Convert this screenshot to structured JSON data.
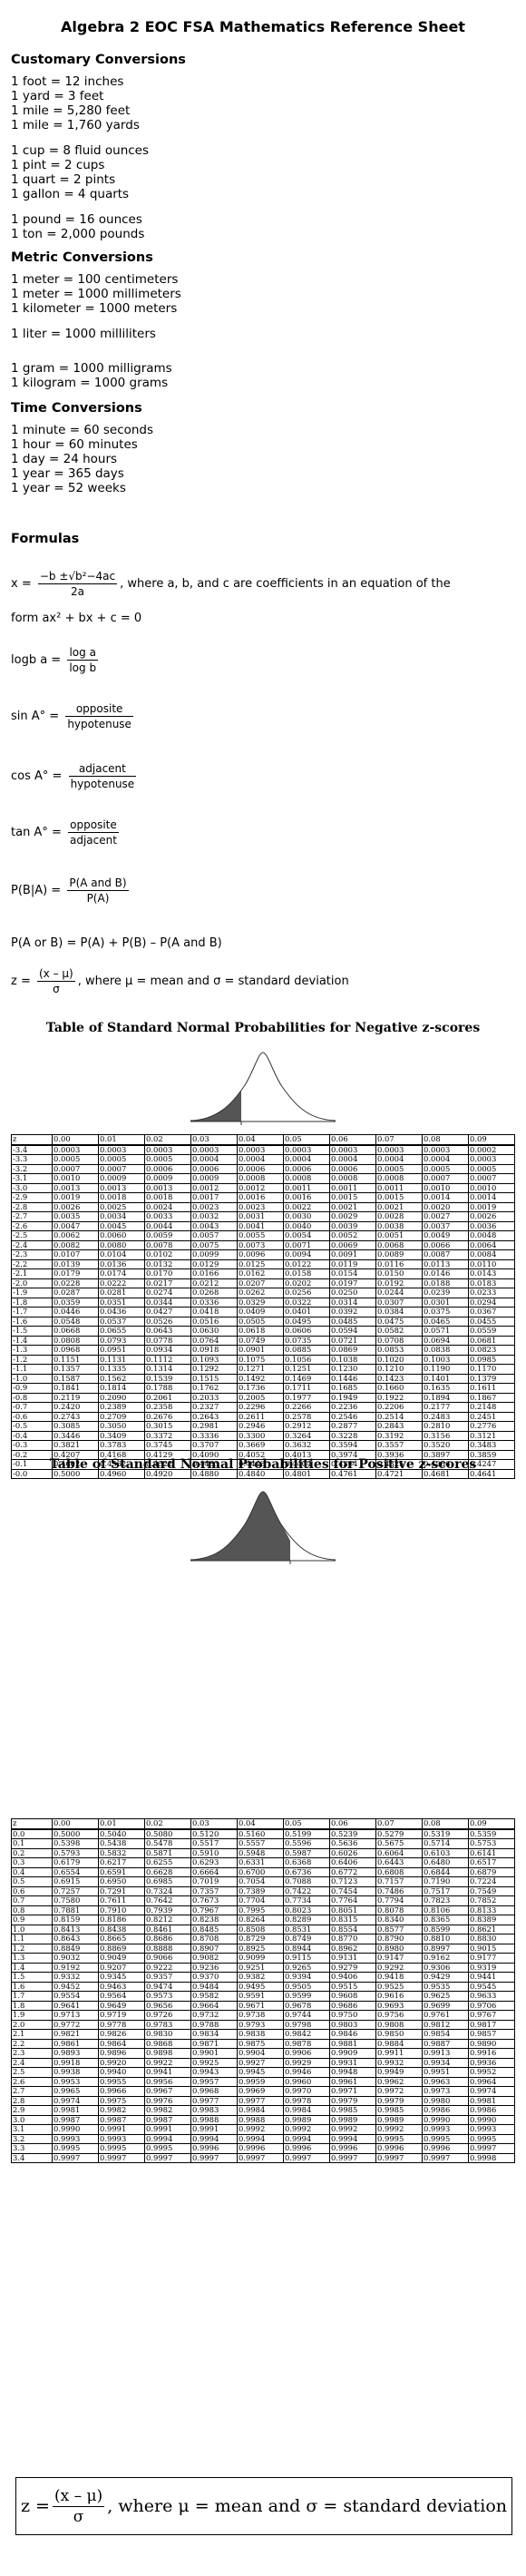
{
  "title": "Algebra 2 EOC FSA Mathematics Reference Sheet",
  "customary": {
    "heading": "Customary Conversions",
    "group1": [
      "1 foot = 12 inches",
      "1 yard = 3 feet",
      "1 mile = 5,280 feet",
      "1 mile = 1,760 yards"
    ],
    "group2": [
      "1 cup = 8 fluid ounces",
      "1 pint = 2 cups",
      "1 quart = 2 pints",
      "1 gallon = 4 quarts"
    ],
    "group3": [
      "1 pound = 16 ounces",
      "1 ton = 2,000 pounds"
    ]
  },
  "metric": {
    "heading": "Metric Conversions",
    "group1": [
      "1 meter = 100 centimeters",
      "1 meter = 1000 millimeters",
      "1 kilometer = 1000 meters"
    ],
    "group2": [
      "1 liter = 1000 milliliters"
    ],
    "group3": [
      "1 gram = 1000 milligrams",
      "1 kilogram = 1000 grams"
    ]
  },
  "time": {
    "heading": "Time Conversions",
    "lines": [
      "1 minute = 60 seconds",
      "1 hour = 60 minutes",
      "1 day = 24 hours",
      "1 year = 365 days",
      "1 year = 52 weeks"
    ]
  },
  "formulas": {
    "heading": "Formulas",
    "quad_lhs": "x =",
    "quad_num": "−b ±√b²−4ac",
    "quad_den": "2a",
    "quad_text": ", where a, b, and c are coefficients in an equation of the",
    "quad_text2": "form ax² + bx + c = 0",
    "log_lhs": "logb a =",
    "log_num": "log a",
    "log_den": "log b",
    "sin_lhs": "sin A° =",
    "sin_num": "opposite",
    "sin_den": "hypotenuse",
    "cos_lhs": "cos A° =",
    "cos_num": "adjacent",
    "cos_den": "hypotenuse",
    "tan_lhs": "tan A° =",
    "tan_num": "opposite",
    "tan_den": "adjacent",
    "cond_lhs": "P(B|A) =",
    "cond_num": "P(A and B)",
    "cond_den": "P(A)",
    "union": "P(A or B) = P(A) + P(B) – P(A and B)",
    "z_lhs": "z =",
    "z_num": "(x – μ)",
    "z_den": "σ",
    "z_text": ", where μ = mean and σ = standard deviation"
  },
  "neg_table": {
    "title": "Table of Standard Normal Probabilities for Negative z-scores",
    "header": [
      "z",
      "0.00",
      "0.01",
      "0.02",
      "0.03",
      "0.04",
      "0.05",
      "0.06",
      "0.07",
      "0.08",
      "0.09"
    ],
    "rows": [
      [
        "-3.4",
        "0.0003",
        "0.0003",
        "0.0003",
        "0.0003",
        "0.0003",
        "0.0003",
        "0.0003",
        "0.0003",
        "0.0003",
        "0.0002"
      ],
      [
        "-3.3",
        "0.0005",
        "0.0005",
        "0.0005",
        "0.0004",
        "0.0004",
        "0.0004",
        "0.0004",
        "0.0004",
        "0.0004",
        "0.0003"
      ],
      [
        "-3.2",
        "0.0007",
        "0.0007",
        "0.0006",
        "0.0006",
        "0.0006",
        "0.0006",
        "0.0006",
        "0.0005",
        "0.0005",
        "0.0005"
      ],
      [
        "-3.1",
        "0.0010",
        "0.0009",
        "0.0009",
        "0.0009",
        "0.0008",
        "0.0008",
        "0.0008",
        "0.0008",
        "0.0007",
        "0.0007"
      ],
      [
        "-3.0",
        "0.0013",
        "0.0013",
        "0.0013",
        "0.0012",
        "0.0012",
        "0.0011",
        "0.0011",
        "0.0011",
        "0.0010",
        "0.0010"
      ],
      [
        "-2.9",
        "0.0019",
        "0.0018",
        "0.0018",
        "0.0017",
        "0.0016",
        "0.0016",
        "0.0015",
        "0.0015",
        "0.0014",
        "0.0014"
      ],
      [
        "-2.8",
        "0.0026",
        "0.0025",
        "0.0024",
        "0.0023",
        "0.0023",
        "0.0022",
        "0.0021",
        "0.0021",
        "0.0020",
        "0.0019"
      ],
      [
        "-2.7",
        "0.0035",
        "0.0034",
        "0.0033",
        "0.0032",
        "0.0031",
        "0.0030",
        "0.0029",
        "0.0028",
        "0.0027",
        "0.0026"
      ],
      [
        "-2.6",
        "0.0047",
        "0.0045",
        "0.0044",
        "0.0043",
        "0.0041",
        "0.0040",
        "0.0039",
        "0.0038",
        "0.0037",
        "0.0036"
      ],
      [
        "-2.5",
        "0.0062",
        "0.0060",
        "0.0059",
        "0.0057",
        "0.0055",
        "0.0054",
        "0.0052",
        "0.0051",
        "0.0049",
        "0.0048"
      ],
      [
        "-2.4",
        "0.0082",
        "0.0080",
        "0.0078",
        "0.0075",
        "0.0073",
        "0.0071",
        "0.0069",
        "0.0068",
        "0.0066",
        "0.0064"
      ],
      [
        "-2.3",
        "0.0107",
        "0.0104",
        "0.0102",
        "0.0099",
        "0.0096",
        "0.0094",
        "0.0091",
        "0.0089",
        "0.0087",
        "0.0084"
      ],
      [
        "-2.2",
        "0.0139",
        "0.0136",
        "0.0132",
        "0.0129",
        "0.0125",
        "0.0122",
        "0.0119",
        "0.0116",
        "0.0113",
        "0.0110"
      ],
      [
        "-2.1",
        "0.0179",
        "0.0174",
        "0.0170",
        "0.0166",
        "0.0162",
        "0.0158",
        "0.0154",
        "0.0150",
        "0.0146",
        "0.0143"
      ],
      [
        "-2.0",
        "0.0228",
        "0.0222",
        "0.0217",
        "0.0212",
        "0.0207",
        "0.0202",
        "0.0197",
        "0.0192",
        "0.0188",
        "0.0183"
      ],
      [
        "-1.9",
        "0.0287",
        "0.0281",
        "0.0274",
        "0.0268",
        "0.0262",
        "0.0256",
        "0.0250",
        "0.0244",
        "0.0239",
        "0.0233"
      ],
      [
        "-1.8",
        "0.0359",
        "0.0351",
        "0.0344",
        "0.0336",
        "0.0329",
        "0.0322",
        "0.0314",
        "0.0307",
        "0.0301",
        "0.0294"
      ],
      [
        "-1.7",
        "0.0446",
        "0.0436",
        "0.0427",
        "0.0418",
        "0.0409",
        "0.0401",
        "0.0392",
        "0.0384",
        "0.0375",
        "0.0367"
      ],
      [
        "-1.6",
        "0.0548",
        "0.0537",
        "0.0526",
        "0.0516",
        "0.0505",
        "0.0495",
        "0.0485",
        "0.0475",
        "0.0465",
        "0.0455"
      ],
      [
        "-1.5",
        "0.0668",
        "0.0655",
        "0.0643",
        "0.0630",
        "0.0618",
        "0.0606",
        "0.0594",
        "0.0582",
        "0.0571",
        "0.0559"
      ],
      [
        "-1.4",
        "0.0808",
        "0.0793",
        "0.0778",
        "0.0764",
        "0.0749",
        "0.0735",
        "0.0721",
        "0.0708",
        "0.0694",
        "0.0681"
      ],
      [
        "-1.3",
        "0.0968",
        "0.0951",
        "0.0934",
        "0.0918",
        "0.0901",
        "0.0885",
        "0.0869",
        "0.0853",
        "0.0838",
        "0.0823"
      ],
      [
        "-1.2",
        "0.1151",
        "0.1131",
        "0.1112",
        "0.1093",
        "0.1075",
        "0.1056",
        "0.1038",
        "0.1020",
        "0.1003",
        "0.0985"
      ],
      [
        "-1.1",
        "0.1357",
        "0.1335",
        "0.1314",
        "0.1292",
        "0.1271",
        "0.1251",
        "0.1230",
        "0.1210",
        "0.1190",
        "0.1170"
      ],
      [
        "-1.0",
        "0.1587",
        "0.1562",
        "0.1539",
        "0.1515",
        "0.1492",
        "0.1469",
        "0.1446",
        "0.1423",
        "0.1401",
        "0.1379"
      ],
      [
        "-0.9",
        "0.1841",
        "0.1814",
        "0.1788",
        "0.1762",
        "0.1736",
        "0.1711",
        "0.1685",
        "0.1660",
        "0.1635",
        "0.1611"
      ],
      [
        "-0.8",
        "0.2119",
        "0.2090",
        "0.2061",
        "0.2033",
        "0.2005",
        "0.1977",
        "0.1949",
        "0.1922",
        "0.1894",
        "0.1867"
      ],
      [
        "-0.7",
        "0.2420",
        "0.2389",
        "0.2358",
        "0.2327",
        "0.2296",
        "0.2266",
        "0.2236",
        "0.2206",
        "0.2177",
        "0.2148"
      ],
      [
        "-0.6",
        "0.2743",
        "0.2709",
        "0.2676",
        "0.2643",
        "0.2611",
        "0.2578",
        "0.2546",
        "0.2514",
        "0.2483",
        "0.2451"
      ],
      [
        "-0.5",
        "0.3085",
        "0.3050",
        "0.3015",
        "0.2981",
        "0.2946",
        "0.2912",
        "0.2877",
        "0.2843",
        "0.2810",
        "0.2776"
      ],
      [
        "-0.4",
        "0.3446",
        "0.3409",
        "0.3372",
        "0.3336",
        "0.3300",
        "0.3264",
        "0.3228",
        "0.3192",
        "0.3156",
        "0.3121"
      ],
      [
        "-0.3",
        "0.3821",
        "0.3783",
        "0.3745",
        "0.3707",
        "0.3669",
        "0.3632",
        "0.3594",
        "0.3557",
        "0.3520",
        "0.3483"
      ],
      [
        "-0.2",
        "0.4207",
        "0.4168",
        "0.4129",
        "0.4090",
        "0.4052",
        "0.4013",
        "0.3974",
        "0.3936",
        "0.3897",
        "0.3859"
      ],
      [
        "-0.1",
        "0.4602",
        "0.4562",
        "0.4522",
        "0.4483",
        "0.4443",
        "0.4404",
        "0.4364",
        "0.4325",
        "0.4286",
        "0.4247"
      ],
      [
        "-0.0",
        "0.5000",
        "0.4960",
        "0.4920",
        "0.4880",
        "0.4840",
        "0.4801",
        "0.4761",
        "0.4721",
        "0.4681",
        "0.4641"
      ]
    ]
  },
  "pos_table": {
    "title": "Table of Standard Normal Probabilities for Positive z-scores",
    "header": [
      "z",
      "0.00",
      "0.01",
      "0.02",
      "0.03",
      "0.04",
      "0.05",
      "0.06",
      "0.07",
      "0.08",
      "0.09"
    ],
    "rows": [
      [
        "0.0",
        "0.5000",
        "0.5040",
        "0.5080",
        "0.5120",
        "0.5160",
        "0.5199",
        "0.5239",
        "0.5279",
        "0.5319",
        "0.5359"
      ],
      [
        "0.1",
        "0.5398",
        "0.5438",
        "0.5478",
        "0.5517",
        "0.5557",
        "0.5596",
        "0.5636",
        "0.5675",
        "0.5714",
        "0.5753"
      ],
      [
        "0.2",
        "0.5793",
        "0.5832",
        "0.5871",
        "0.5910",
        "0.5948",
        "0.5987",
        "0.6026",
        "0.6064",
        "0.6103",
        "0.6141"
      ],
      [
        "0.3",
        "0.6179",
        "0.6217",
        "0.6255",
        "0.6293",
        "0.6331",
        "0.6368",
        "0.6406",
        "0.6443",
        "0.6480",
        "0.6517"
      ],
      [
        "0.4",
        "0.6554",
        "0.6591",
        "0.6628",
        "0.6664",
        "0.6700",
        "0.6736",
        "0.6772",
        "0.6808",
        "0.6844",
        "0.6879"
      ],
      [
        "0.5",
        "0.6915",
        "0.6950",
        "0.6985",
        "0.7019",
        "0.7054",
        "0.7088",
        "0.7123",
        "0.7157",
        "0.7190",
        "0.7224"
      ],
      [
        "0.6",
        "0.7257",
        "0.7291",
        "0.7324",
        "0.7357",
        "0.7389",
        "0.7422",
        "0.7454",
        "0.7486",
        "0.7517",
        "0.7549"
      ],
      [
        "0.7",
        "0.7580",
        "0.7611",
        "0.7642",
        "0.7673",
        "0.7704",
        "0.7734",
        "0.7764",
        "0.7794",
        "0.7823",
        "0.7852"
      ],
      [
        "0.8",
        "0.7881",
        "0.7910",
        "0.7939",
        "0.7967",
        "0.7995",
        "0.8023",
        "0.8051",
        "0.8078",
        "0.8106",
        "0.8133"
      ],
      [
        "0.9",
        "0.8159",
        "0.8186",
        "0.8212",
        "0.8238",
        "0.8264",
        "0.8289",
        "0.8315",
        "0.8340",
        "0.8365",
        "0.8389"
      ],
      [
        "1.0",
        "0.8413",
        "0.8438",
        "0.8461",
        "0.8485",
        "0.8508",
        "0.8531",
        "0.8554",
        "0.8577",
        "0.8599",
        "0.8621"
      ],
      [
        "1.1",
        "0.8643",
        "0.8665",
        "0.8686",
        "0.8708",
        "0.8729",
        "0.8749",
        "0.8770",
        "0.8790",
        "0.8810",
        "0.8830"
      ],
      [
        "1.2",
        "0.8849",
        "0.8869",
        "0.8888",
        "0.8907",
        "0.8925",
        "0.8944",
        "0.8962",
        "0.8980",
        "0.8997",
        "0.9015"
      ],
      [
        "1.3",
        "0.9032",
        "0.9049",
        "0.9066",
        "0.9082",
        "0.9099",
        "0.9115",
        "0.9131",
        "0.9147",
        "0.9162",
        "0.9177"
      ],
      [
        "1.4",
        "0.9192",
        "0.9207",
        "0.9222",
        "0.9236",
        "0.9251",
        "0.9265",
        "0.9279",
        "0.9292",
        "0.9306",
        "0.9319"
      ],
      [
        "1.5",
        "0.9332",
        "0.9345",
        "0.9357",
        "0.9370",
        "0.9382",
        "0.9394",
        "0.9406",
        "0.9418",
        "0.9429",
        "0.9441"
      ],
      [
        "1.6",
        "0.9452",
        "0.9463",
        "0.9474",
        "0.9484",
        "0.9495",
        "0.9505",
        "0.9515",
        "0.9525",
        "0.9535",
        "0.9545"
      ],
      [
        "1.7",
        "0.9554",
        "0.9564",
        "0.9573",
        "0.9582",
        "0.9591",
        "0.9599",
        "0.9608",
        "0.9616",
        "0.9625",
        "0.9633"
      ],
      [
        "1.8",
        "0.9641",
        "0.9649",
        "0.9656",
        "0.9664",
        "0.9671",
        "0.9678",
        "0.9686",
        "0.9693",
        "0.9699",
        "0.9706"
      ],
      [
        "1.9",
        "0.9713",
        "0.9719",
        "0.9726",
        "0.9732",
        "0.9738",
        "0.9744",
        "0.9750",
        "0.9756",
        "0.9761",
        "0.9767"
      ],
      [
        "2.0",
        "0.9772",
        "0.9778",
        "0.9783",
        "0.9788",
        "0.9793",
        "0.9798",
        "0.9803",
        "0.9808",
        "0.9812",
        "0.9817"
      ],
      [
        "2.1",
        "0.9821",
        "0.9826",
        "0.9830",
        "0.9834",
        "0.9838",
        "0.9842",
        "0.9846",
        "0.9850",
        "0.9854",
        "0.9857"
      ],
      [
        "2.2",
        "0.9861",
        "0.9864",
        "0.9868",
        "0.9871",
        "0.9875",
        "0.9878",
        "0.9881",
        "0.9884",
        "0.9887",
        "0.9890"
      ],
      [
        "2.3",
        "0.9893",
        "0.9896",
        "0.9898",
        "0.9901",
        "0.9904",
        "0.9906",
        "0.9909",
        "0.9911",
        "0.9913",
        "0.9916"
      ],
      [
        "2.4",
        "0.9918",
        "0.9920",
        "0.9922",
        "0.9925",
        "0.9927",
        "0.9929",
        "0.9931",
        "0.9932",
        "0.9934",
        "0.9936"
      ],
      [
        "2.5",
        "0.9938",
        "0.9940",
        "0.9941",
        "0.9943",
        "0.9945",
        "0.9946",
        "0.9948",
        "0.9949",
        "0.9951",
        "0.9952"
      ],
      [
        "2.6",
        "0.9953",
        "0.9955",
        "0.9956",
        "0.9957",
        "0.9959",
        "0.9960",
        "0.9961",
        "0.9962",
        "0.9963",
        "0.9964"
      ],
      [
        "2.7",
        "0.9965",
        "0.9966",
        "0.9967",
        "0.9968",
        "0.9969",
        "0.9970",
        "0.9971",
        "0.9972",
        "0.9973",
        "0.9974"
      ],
      [
        "2.8",
        "0.9974",
        "0.9975",
        "0.9976",
        "0.9977",
        "0.9977",
        "0.9978",
        "0.9979",
        "0.9979",
        "0.9980",
        "0.9981"
      ],
      [
        "2.9",
        "0.9981",
        "0.9982",
        "0.9982",
        "0.9983",
        "0.9984",
        "0.9984",
        "0.9985",
        "0.9985",
        "0.9986",
        "0.9986"
      ],
      [
        "3.0",
        "0.9987",
        "0.9987",
        "0.9987",
        "0.9988",
        "0.9988",
        "0.9989",
        "0.9989",
        "0.9989",
        "0.9990",
        "0.9990"
      ],
      [
        "3.1",
        "0.9990",
        "0.9991",
        "0.9991",
        "0.9991",
        "0.9992",
        "0.9992",
        "0.9992",
        "0.9992",
        "0.9993",
        "0.9993"
      ],
      [
        "3.2",
        "0.9993",
        "0.9993",
        "0.9994",
        "0.9994",
        "0.9994",
        "0.9994",
        "0.9994",
        "0.9995",
        "0.9995",
        "0.9995"
      ],
      [
        "3.3",
        "0.9995",
        "0.9995",
        "0.9995",
        "0.9996",
        "0.9996",
        "0.9996",
        "0.9996",
        "0.9996",
        "0.9996",
        "0.9997"
      ],
      [
        "3.4",
        "0.9997",
        "0.9997",
        "0.9997",
        "0.9997",
        "0.9997",
        "0.9997",
        "0.9997",
        "0.9997",
        "0.9997",
        "0.9998"
      ]
    ]
  },
  "footer": {
    "lhs": "z =",
    "num": "(x – μ)",
    "den": "σ",
    "text": ", where μ = mean and σ = standard deviation"
  }
}
